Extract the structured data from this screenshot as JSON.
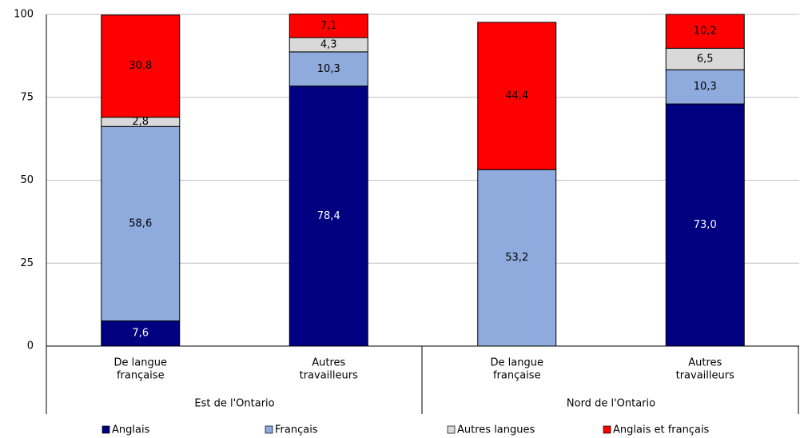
{
  "chart_data": {
    "type": "stacked-bar",
    "categories": [
      [
        "De langue",
        "française"
      ],
      [
        "Autres",
        "travailleurs"
      ],
      [
        "De langue",
        "française"
      ],
      [
        "Autres",
        "travailleurs"
      ]
    ],
    "groups": [
      {
        "name": "Est de l'Ontario",
        "span": 2
      },
      {
        "name": "Nord de l'Ontario",
        "span": 2
      }
    ],
    "series": [
      {
        "name": "Anglais",
        "color": "#000080",
        "label_color": "#ffffff",
        "values": [
          7.6,
          78.4,
          null,
          73.0
        ],
        "value_labels": [
          "7,6",
          "78,4",
          null,
          "73,0"
        ]
      },
      {
        "name": "Français",
        "color": "#8faadc",
        "label_color": "#000000",
        "values": [
          58.6,
          10.3,
          53.2,
          10.3
        ],
        "value_labels": [
          "58,6",
          "10,3",
          "53,2",
          "10,3"
        ]
      },
      {
        "name": "Autres langues",
        "color": "#d9d9d9",
        "label_color": "#000000",
        "values": [
          2.8,
          4.3,
          null,
          6.5
        ],
        "value_labels": [
          "2,8",
          "4,3",
          null,
          "6,5"
        ]
      },
      {
        "name": "Anglais et français",
        "color": "#ff0000",
        "label_color": "#000000",
        "values": [
          30.8,
          7.1,
          44.4,
          10.2
        ],
        "value_labels": [
          "30,8",
          "7,1",
          "44,4",
          "10,2"
        ]
      }
    ],
    "ylim": [
      0,
      100
    ],
    "yticks": [
      0,
      25,
      50,
      75,
      100
    ],
    "grid": true
  }
}
